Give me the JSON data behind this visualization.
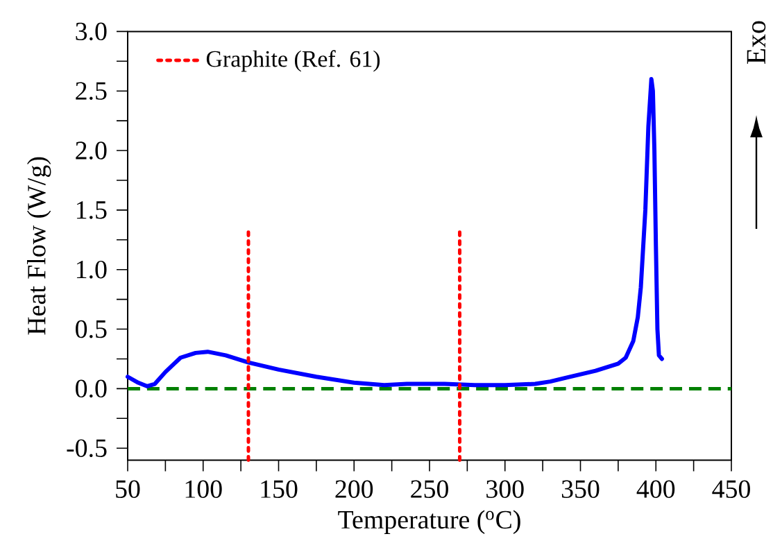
{
  "chart_data": {
    "type": "line",
    "xlabel": "Temperature ($^{o}$C)",
    "ylabel": "Heat Flow (W/g)",
    "xlim": [
      50,
      450
    ],
    "xticks": [
      50,
      100,
      150,
      200,
      250,
      300,
      350,
      400,
      450
    ],
    "ylim": [
      -0.6,
      3.0
    ],
    "yticks": [
      -0.5,
      {
        "value": 0,
        "label": "0.0"
      },
      0.5,
      {
        "value": 1,
        "label": "1.0"
      },
      1.5,
      {
        "value": 2,
        "label": "2.0"
      },
      2.5,
      {
        "value": 3,
        "label": "3.0"
      }
    ],
    "grid": false,
    "legend": "top left",
    "series": [
      {
        "color": "#0000ff",
        "line_style": "solid",
        "x": [
          50,
          57,
          63,
          68,
          75,
          85,
          95,
          103,
          115,
          130,
          150,
          175,
          200,
          220,
          235,
          260,
          280,
          300,
          320,
          330,
          340,
          360,
          375,
          380,
          385,
          388,
          390,
          393,
          395,
          397,
          398,
          399,
          400,
          401,
          402,
          404
        ],
        "values": [
          0.1,
          0.05,
          0.02,
          0.04,
          0.14,
          0.26,
          0.3,
          0.31,
          0.28,
          0.22,
          0.16,
          0.1,
          0.05,
          0.03,
          0.04,
          0.04,
          0.03,
          0.03,
          0.04,
          0.06,
          0.09,
          0.15,
          0.21,
          0.26,
          0.4,
          0.6,
          0.85,
          1.5,
          2.2,
          2.6,
          2.5,
          2.0,
          1.2,
          0.5,
          0.28,
          0.25
        ]
      },
      {
        "name": "Graphite (Ref. 61)",
        "color": "#ff0000",
        "line_style": "dotted",
        "x": [
          130,
          130
        ],
        "values": [
          -0.6,
          1.36
        ]
      },
      {
        "color": "#ff0000",
        "line_style": "dotted",
        "x": [
          270,
          270
        ],
        "values": [
          -0.6,
          1.36
        ]
      }
    ],
    "ref_lines": [
      {
        "axis": "y",
        "value": 0.0,
        "color": "#008000",
        "line_style": "dashed"
      }
    ],
    "annotations": [
      "Exo"
    ]
  }
}
